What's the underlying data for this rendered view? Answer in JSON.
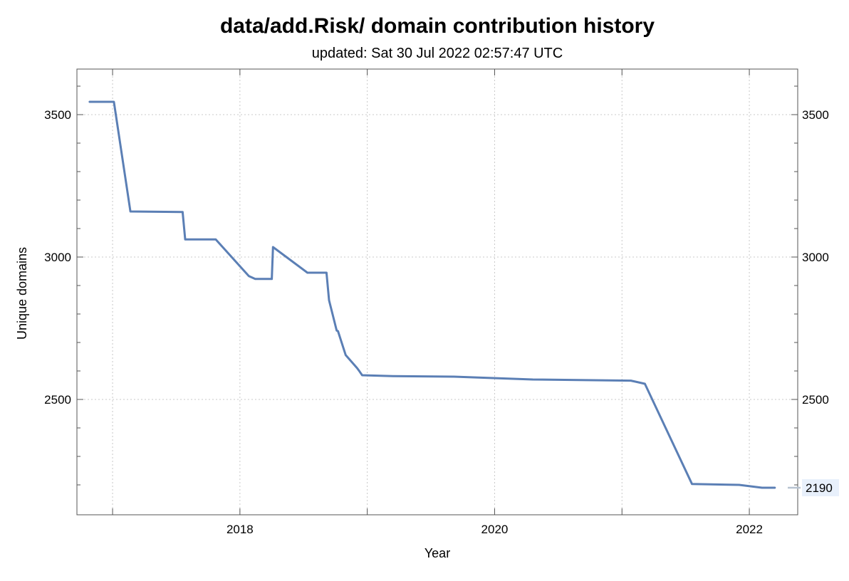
{
  "chart_data": {
    "type": "line",
    "title": "data/add.Risk/ domain contribution history",
    "subtitle": "updated: Sat 30 Jul 2022 02:57:47 UTC",
    "xlabel": "Year",
    "ylabel": "Unique domains",
    "xlim": [
      2016.72,
      2022.38
    ],
    "ylim": [
      2095,
      3660
    ],
    "x_major_ticks": [
      2018,
      2020,
      2022
    ],
    "x_minor_ticks": [
      2017,
      2019,
      2021
    ],
    "y_major_ticks": [
      2500,
      3000,
      3500
    ],
    "y_tick_labels": [
      "2500",
      "3000",
      "3500"
    ],
    "x_tick_labels": [
      "2018",
      "2020",
      "2022"
    ],
    "grid": true,
    "line_color": "#5b7fb5",
    "end_value": 2190,
    "end_label": "2190",
    "series": [
      {
        "values": [
          [
            2016.82,
            3545
          ],
          [
            2017.01,
            3545
          ],
          [
            2017.14,
            3160
          ],
          [
            2017.55,
            3158
          ],
          [
            2017.57,
            3062
          ],
          [
            2017.81,
            3062
          ],
          [
            2018.07,
            2933
          ],
          [
            2018.12,
            2923
          ],
          [
            2018.25,
            2923
          ],
          [
            2018.26,
            3035
          ],
          [
            2018.53,
            2945
          ],
          [
            2018.68,
            2945
          ],
          [
            2018.7,
            2848
          ],
          [
            2018.76,
            2742
          ],
          [
            2018.77,
            2740
          ],
          [
            2018.83,
            2656
          ],
          [
            2018.92,
            2610
          ],
          [
            2018.94,
            2598
          ],
          [
            2018.96,
            2585
          ],
          [
            2019.2,
            2582
          ],
          [
            2019.68,
            2580
          ],
          [
            2020.3,
            2570
          ],
          [
            2021.07,
            2566
          ],
          [
            2021.18,
            2555
          ],
          [
            2021.55,
            2203
          ],
          [
            2021.92,
            2200
          ],
          [
            2022.1,
            2190
          ],
          [
            2022.2,
            2190
          ]
        ]
      }
    ]
  }
}
